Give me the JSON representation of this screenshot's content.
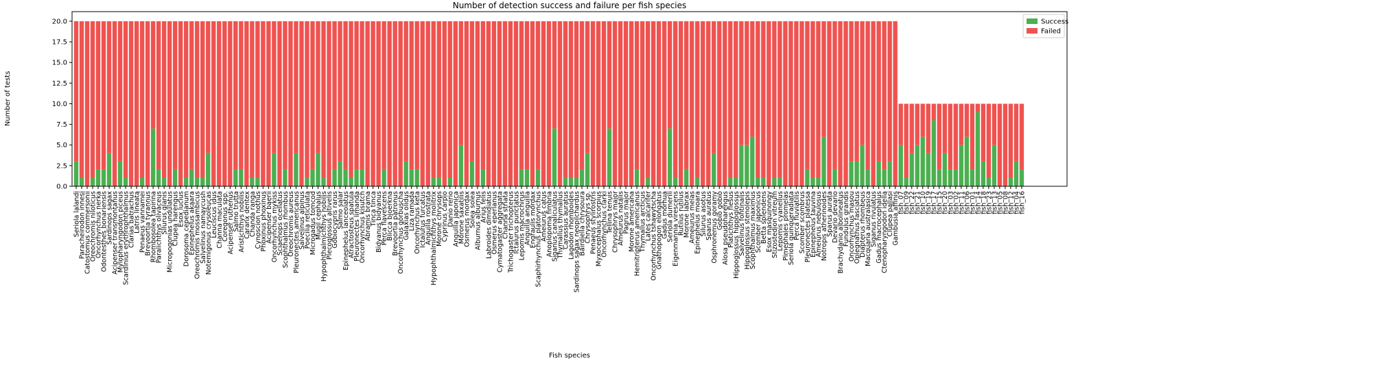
{
  "chart_data": {
    "type": "bar",
    "stacked": true,
    "title": "Number of detection success and failure per fish species",
    "x_label": "Fish species",
    "y_label": "Number of tests",
    "legend": "upper right",
    "categories": [
      "Seriola lalandi",
      "Paracheirodon innesi",
      "Catostomus commersonii",
      "Oreochromis niloticus",
      "Oncorhynchus nerka",
      "Odontesthes bonariensis",
      "Sardinops sagax",
      "Acipenser transmontanus",
      "Mylopharyngodon piceus",
      "Scardinius erythrophthalmus",
      "Clarias batrachus",
      "Latris lineata",
      "Penaeus vannamei",
      "Brevoortia tyrannus",
      "Rhombosolea tapirina",
      "Paralichthys olivaceus",
      "Silurus glanis",
      "Micropogonias undulatus",
      "Clupea harengus",
      "Esox lucius",
      "Dorosoma cepedianum",
      "Epinephelus akaara",
      "Oreochromis mossambicus",
      "Salvelinus namaycush",
      "Notemigonus crysoleucas",
      "Leuciscus idus",
      "Channa maculata",
      "Coregonus spp.",
      "Acipenser ruthenus",
      "Salmo trutta",
      "Aristichthys nobilis",
      "Caranx dentex",
      "Chanda ranga",
      "Cynoscion nothus",
      "Phoxinus phoxinus",
      "Acipenser baerii",
      "Oncorhynchus mykiss",
      "Sciaenops ocellatus",
      "Scophthalmus rhombus",
      "Oreochromis aureus",
      "Pleuronectes americanus",
      "Salvelinus alpinus",
      "Poecilia reticulata",
      "Microgadus tomcod",
      "Mugil cephalus",
      "Hypophthalmichthys nobilis",
      "Plecoglossus altivelis",
      "Gobiocypris rarus",
      "Salmo salar",
      "Epinephelus lanceolatus",
      "Atractosteus spatula",
      "Pleuronectes limanda",
      "Oncorhynchus kisutch",
      "Abramis brama",
      "Tinca tinca",
      "Bidyanus bidyanus",
      "Perca flavescens",
      "Blicca bjoerkna",
      "Brevoortia patronus",
      "Oncorhynchus gorbuscha",
      "Galaxias olidus",
      "Liza ramada",
      "Oncorhynchus keta",
      "Ictalurus furcatus",
      "Anguilla rostrata",
      "Hypophthalmichthys molitrix",
      "Morone chrysops",
      "Cyprinus carpio",
      "Danio rerio",
      "Anguilla japonica",
      "Morone saxatilis",
      "Osmerus mordax",
      "Solea solea",
      "Alburnus alburnus",
      "Arius felis",
      "Labroides dimidiatus",
      "Osmerus eperlanus",
      "Cymatogaster aggregata",
      "Channa striata",
      "Trichogaster trichopterus",
      "Ictalurus punctatus",
      "Lepomis macrochirus",
      "Anguilla anguilla",
      "Engraulis mordax",
      "Scaphirhynchus platorynchus",
      "Ameiurus catus",
      "Anoplopoma fimbria",
      "Siganus canaliculatus",
      "Thymallus thymallus",
      "Carassius auratus",
      "Lagodon rhomboides",
      "Sardinops sagax neopilchardus",
      "Bairdiella chrysoura",
      "Chrysophrys sp.",
      "Penaeus stylirostris",
      "Myxocephalus scorpius",
      "Oncorhynchus clarki",
      "Tellina tenuis",
      "Chrysophrys major",
      "Ameiurus natalis",
      "Pagrus major",
      "Morone americana",
      "Hemitripterus americanus",
      "Thymallus arcticus",
      "Lates calcarifer",
      "Oncorhynchus tshawytscha",
      "Gnathopogon elongatus",
      "Gadus morhua",
      "Seriola dumerili",
      "Eigenmannia virescens",
      "Rutilus rutilus",
      "Morone labrax",
      "Ameiurus melas",
      "Epinephelus moara",
      "Silurus asotus",
      "Sparus auratus",
      "Osphronemus goramy",
      "Gobio gobio",
      "Alosa pseudoharengus",
      "Platichthys flesus",
      "Hippoglossus hippoglossus",
      "Salvelinus fontinalis",
      "Hippoglossus stenolepis",
      "Scophthalmus maximus",
      "Scomber japonicus",
      "Betta splendens",
      "Esox masquinongy",
      "Stizostedion vitreum",
      "Lepomis cyanellus",
      "Pimephales promelas",
      "Seriola quinqueradiata",
      "Perca fluviatilis",
      "Scomber scombrus",
      "Pleuronectes platessa",
      "Epinephelus tauvina",
      "Ameiurus nebulosus",
      "Notropis atherinoides",
      "Sparus aurata",
      "Devario devario",
      "Brachydanio albolineatus",
      "Fundulus grandis",
      "Oncorhynchus masou",
      "Oplegnathus fasciatus",
      "Diapterus rhombeus",
      "Macquaria australasica",
      "Siganus rivulatus",
      "Gadus macrocephalus",
      "Ctenopharyngodon idella",
      "Clupea pallasi",
      "Gambusia affinis",
      "fish_07",
      "fish_09",
      "fish_22",
      "fish_21",
      "fish_10",
      "fish_19",
      "fish_17",
      "fish_15",
      "fish_20",
      "fish_03",
      "fish_02",
      "fish_11",
      "fish_06",
      "fish_01",
      "fish_14",
      "fish_18",
      "fish_23",
      "fish_13",
      "fish_05",
      "fish_08",
      "fish_12",
      "fish_04",
      "fish_16"
    ],
    "series": [
      {
        "name": "Success",
        "color": "#4caf50",
        "values": [
          3,
          1,
          0,
          1,
          2,
          2,
          4,
          0,
          3,
          1,
          0,
          0,
          1,
          0,
          7,
          2,
          1,
          0,
          2,
          0,
          1,
          2,
          1,
          1,
          4,
          0,
          0,
          0,
          0,
          2,
          2,
          0,
          1,
          1,
          0,
          0,
          4,
          0,
          2,
          0,
          4,
          0,
          1,
          2,
          4,
          1,
          0,
          2,
          3,
          2,
          1,
          2,
          2,
          0,
          0,
          0,
          2,
          0,
          0,
          0,
          3,
          2,
          2,
          0,
          0,
          1,
          1,
          0,
          1,
          0,
          5,
          0,
          3,
          0,
          2,
          0,
          0,
          0,
          0,
          0,
          0,
          2,
          2,
          0,
          2,
          0,
          0,
          7,
          0,
          1,
          1,
          1,
          2,
          4,
          0,
          0,
          0,
          7,
          0,
          0,
          0,
          0,
          2,
          0,
          1,
          0,
          0,
          0,
          7,
          1,
          0,
          2,
          0,
          1,
          0,
          0,
          4,
          0,
          0,
          1,
          1,
          5,
          5,
          6,
          1,
          1,
          0,
          1,
          1,
          0,
          0,
          0,
          0,
          2,
          1,
          1,
          6,
          0,
          2,
          0,
          0,
          3,
          3,
          5,
          2,
          0,
          3,
          2,
          3,
          0,
          5,
          1,
          4,
          5,
          6,
          4,
          8,
          2,
          4,
          2,
          2,
          5,
          6,
          2,
          9,
          3,
          1,
          5,
          0,
          0,
          1,
          3,
          2
        ]
      },
      {
        "name": "Failed",
        "color": "#ef5350",
        "values": [
          17,
          19,
          20,
          19,
          18,
          18,
          16,
          20,
          17,
          19,
          20,
          20,
          19,
          20,
          13,
          18,
          19,
          20,
          18,
          20,
          19,
          18,
          19,
          19,
          16,
          20,
          20,
          20,
          20,
          18,
          18,
          20,
          19,
          19,
          20,
          20,
          16,
          20,
          18,
          20,
          16,
          20,
          19,
          18,
          16,
          19,
          20,
          18,
          17,
          18,
          19,
          18,
          18,
          20,
          20,
          20,
          18,
          20,
          20,
          20,
          17,
          18,
          18,
          20,
          20,
          19,
          19,
          20,
          19,
          20,
          15,
          20,
          17,
          20,
          18,
          20,
          20,
          20,
          20,
          20,
          20,
          18,
          18,
          20,
          18,
          20,
          20,
          13,
          20,
          19,
          19,
          19,
          18,
          16,
          20,
          20,
          20,
          13,
          20,
          20,
          20,
          20,
          18,
          20,
          19,
          20,
          20,
          20,
          13,
          19,
          20,
          18,
          20,
          19,
          20,
          20,
          16,
          20,
          20,
          19,
          19,
          15,
          15,
          14,
          19,
          19,
          20,
          19,
          19,
          20,
          20,
          20,
          20,
          18,
          19,
          19,
          14,
          20,
          18,
          20,
          20,
          17,
          17,
          15,
          18,
          20,
          17,
          18,
          17,
          20,
          5,
          9,
          6,
          5,
          4,
          6,
          2,
          8,
          6,
          8,
          8,
          5,
          4,
          8,
          1,
          7,
          9,
          5,
          10,
          10,
          9,
          7,
          8
        ]
      }
    ],
    "ylim": [
      0,
      21.16
    ],
    "yticks": [
      {
        "value": 0,
        "label": "0.0"
      },
      2.5,
      {
        "value": 5,
        "label": "5.0"
      },
      7.5,
      {
        "value": 10,
        "label": "10.0"
      },
      12.5,
      {
        "value": 15,
        "label": "15.0"
      },
      17.5,
      {
        "value": 20,
        "label": "20.0"
      }
    ]
  }
}
